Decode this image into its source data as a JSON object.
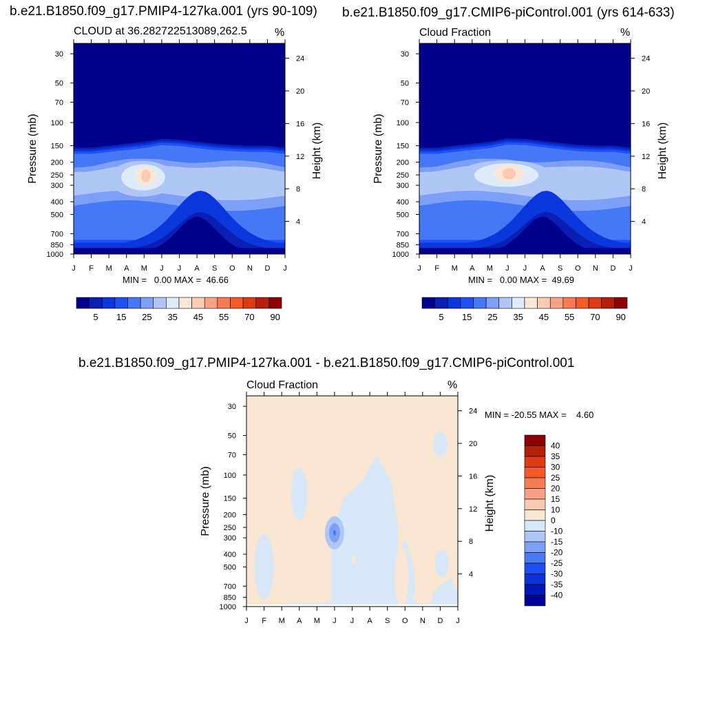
{
  "colors": {
    "scale_abs": [
      "#00008b",
      "#0a1fb4",
      "#0a37dc",
      "#1e50f5",
      "#4678f5",
      "#7d9ff5",
      "#afc6f7",
      "#deebfa",
      "#fce6d6",
      "#facab2",
      "#f5a384",
      "#f77b55",
      "#f55a28",
      "#dc3c14",
      "#b41e0a",
      "#8c0000"
    ],
    "scale_diff": [
      "#000094",
      "#0017b8",
      "#0a32d6",
      "#1e4ff0",
      "#4c7af2",
      "#7ea0f5",
      "#aec7f7",
      "#d6e8fa",
      "#fbe6d2",
      "#f9cab2",
      "#f5a384",
      "#f47d55",
      "#f25a2a",
      "#dc3c12",
      "#b41e08",
      "#8c0000"
    ]
  },
  "chart_data": [
    {
      "type": "heatmap",
      "id": "top-left",
      "title": "b.e21.B1850.f09_g17.PMIP4-127ka.001 (yrs 90-109)",
      "subtitle_left": "CLOUD at 36.282722513089,262.5",
      "units": "%",
      "ylabel_left": "Pressure (mb)",
      "ylabel_right": "Height (km)",
      "x_ticks": [
        "J",
        "F",
        "M",
        "A",
        "M",
        "J",
        "J",
        "A",
        "S",
        "O",
        "N",
        "D",
        "J"
      ],
      "y_ticks_pressure": [
        30,
        50,
        70,
        100,
        150,
        200,
        250,
        300,
        400,
        500,
        700,
        850,
        1000
      ],
      "y_ticks_height": [
        24,
        20,
        16,
        12,
        8,
        4
      ],
      "min_label": "MIN =",
      "min_value": "0.00",
      "max_label": "MAX =",
      "max_value": "46.66",
      "colorbar_labels": [
        "5",
        "15",
        "25",
        "35",
        "45",
        "55",
        "70",
        "90"
      ],
      "cloud_top_pressure": [
        155,
        155,
        150,
        145,
        140,
        133,
        135,
        140,
        145,
        148,
        150,
        150,
        155
      ],
      "peak": {
        "month_index": 4,
        "pressure": 255,
        "value": 46.66
      }
    },
    {
      "type": "heatmap",
      "id": "top-right",
      "title": "b.e21.B1850.f09_g17.CMIP6-piControl.001 (yrs 614-633)",
      "subtitle_left": "Cloud Fraction",
      "units": "%",
      "ylabel_left": "Pressure (mb)",
      "ylabel_right": "Height (km)",
      "x_ticks": [
        "J",
        "F",
        "M",
        "A",
        "M",
        "J",
        "J",
        "A",
        "S",
        "O",
        "N",
        "D",
        "J"
      ],
      "y_ticks_pressure": [
        30,
        50,
        70,
        100,
        150,
        200,
        250,
        300,
        400,
        500,
        700,
        850,
        1000
      ],
      "y_ticks_height": [
        24,
        20,
        16,
        12,
        8,
        4
      ],
      "min_label": "MIN =",
      "min_value": "0.00",
      "max_label": "MAX =",
      "max_value": "49.69",
      "colorbar_labels": [
        "5",
        "15",
        "25",
        "35",
        "45",
        "55",
        "70",
        "90"
      ],
      "cloud_top_pressure": [
        155,
        155,
        150,
        145,
        140,
        132,
        133,
        138,
        143,
        148,
        150,
        150,
        155
      ],
      "peak": {
        "month_index": 5,
        "pressure": 245,
        "value": 49.69
      }
    },
    {
      "type": "heatmap",
      "id": "bottom-diff",
      "title": "b.e21.B1850.f09_g17.PMIP4-127ka.001 - b.e21.B1850.f09_g17.CMIP6-piControl.001",
      "subtitle_left": "Cloud Fraction",
      "units": "%",
      "ylabel_left": "Pressure (mb)",
      "ylabel_right": "Height (km)",
      "x_ticks": [
        "J",
        "F",
        "M",
        "A",
        "M",
        "J",
        "J",
        "A",
        "S",
        "O",
        "N",
        "D",
        "J"
      ],
      "y_ticks_pressure": [
        30,
        50,
        70,
        100,
        150,
        200,
        250,
        300,
        400,
        500,
        700,
        850,
        1000
      ],
      "y_ticks_height": [
        24,
        20,
        16,
        12,
        8,
        4
      ],
      "min_label": "MIN =",
      "min_value": "-20.55",
      "max_label": "MAX =",
      "max_value": "4.60",
      "colorbar_labels": [
        "40",
        "35",
        "30",
        "25",
        "20",
        "15",
        "10",
        "0",
        "-10",
        "-15",
        "-20",
        "-25",
        "-30",
        "-35",
        "-40"
      ],
      "min_location": {
        "month_index": 5,
        "pressure": 275,
        "value": -20.55
      }
    }
  ]
}
